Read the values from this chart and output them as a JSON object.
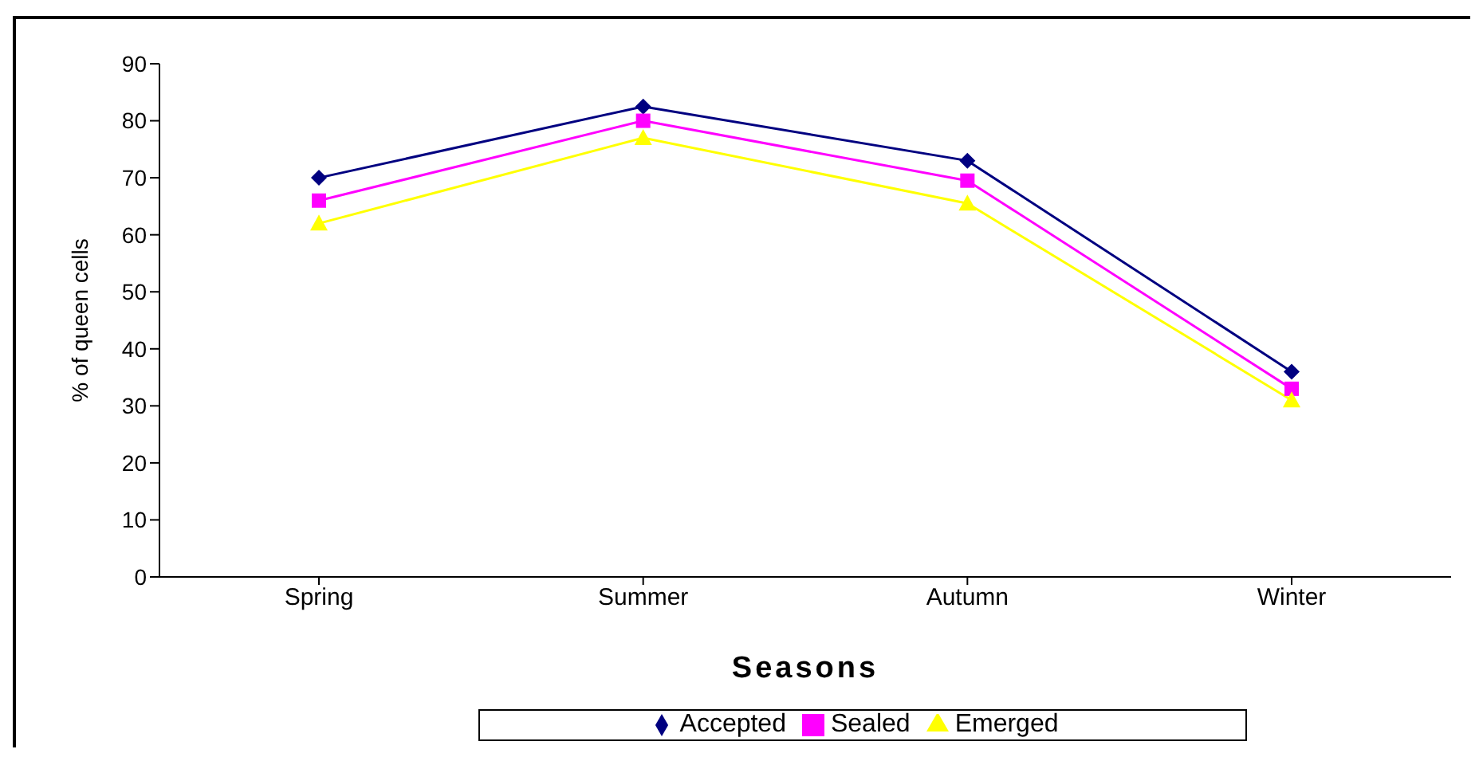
{
  "chart_data": {
    "type": "line",
    "xlabel": "Seasons",
    "ylabel": "% of queen cells",
    "categories": [
      "Spring",
      "Summer",
      "Autumn",
      "Winter"
    ],
    "series": [
      {
        "name": "Accepted",
        "color": "#000080",
        "marker": "diamond",
        "values": [
          70,
          82.5,
          73,
          36
        ]
      },
      {
        "name": "Sealed",
        "color": "#ff00ff",
        "marker": "square",
        "values": [
          66,
          80,
          69.5,
          33
        ]
      },
      {
        "name": "Emerged",
        "color": "#ffff00",
        "marker": "triangle",
        "values": [
          62,
          77,
          65.5,
          31
        ]
      }
    ],
    "ylim": [
      0,
      90
    ],
    "yticks": [
      0,
      10,
      20,
      30,
      40,
      50,
      60,
      70,
      80,
      90
    ],
    "grid": false,
    "legend": "bottom"
  }
}
